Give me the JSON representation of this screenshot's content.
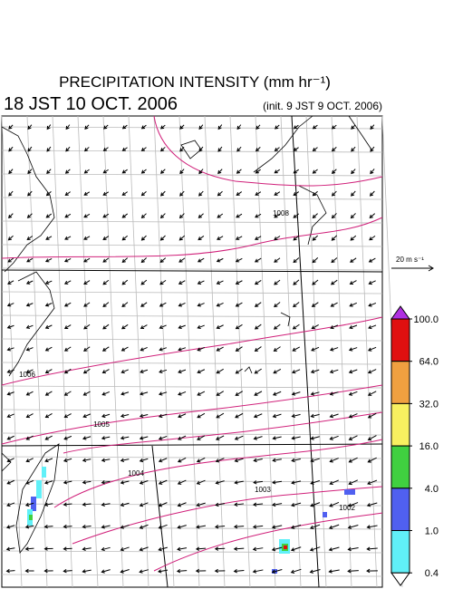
{
  "header": {
    "title": "PRECIPITATION INTENSITY (mm hr⁻¹)",
    "valid": "18 JST 10 OCT. 2006",
    "init": "(init. 9 JST 9 OCT. 2006)"
  },
  "vector_legend": "20 m s⁻¹",
  "colorbar": {
    "levels": [
      {
        "value": 100,
        "label": "100.0"
      },
      {
        "value": 64,
        "label": "64.0"
      },
      {
        "value": 32,
        "label": "32.0"
      },
      {
        "value": 16,
        "label": "16.0"
      },
      {
        "value": 4,
        "label": "4.0"
      },
      {
        "value": 1,
        "label": "1.0"
      },
      {
        "value": 0.4,
        "label": "0.4"
      }
    ],
    "colors": [
      "#b030e0",
      "#e01010",
      "#f0a040",
      "#f8f060",
      "#40d040",
      "#5060f0",
      "#60f0f8",
      "#ffffff"
    ]
  },
  "contour_labels": [
    "1008",
    "1006",
    "1005",
    "1004",
    "1003",
    "1002"
  ]
}
